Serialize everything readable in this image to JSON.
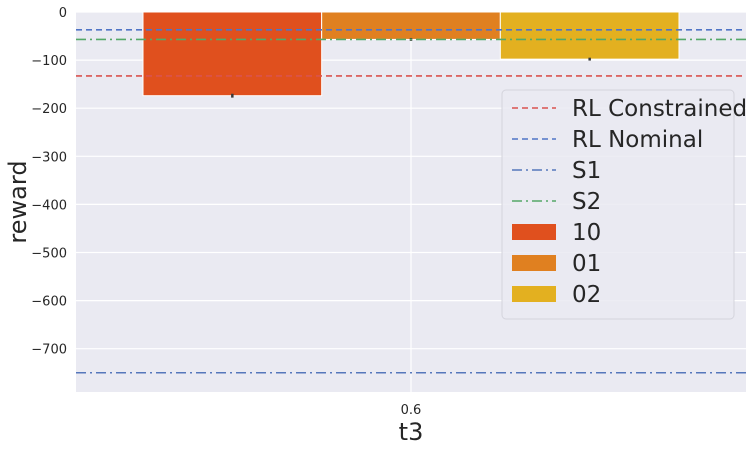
{
  "chart_data": {
    "type": "bar",
    "title": "",
    "xlabel": "t3",
    "ylabel": "reward",
    "categories": [
      "0.6"
    ],
    "ylim": [
      -790,
      0
    ],
    "yticks": [
      0,
      -100,
      -200,
      -300,
      -400,
      -500,
      -600,
      -700
    ],
    "ytick_labels": [
      "0",
      "−100",
      "−200",
      "−300",
      "−400",
      "−500",
      "−600",
      "−700"
    ],
    "grid": true,
    "legend_position": "right",
    "series": [
      {
        "name": "10",
        "values": [
          -174
        ],
        "error": [
          4
        ],
        "color": "#e0501e"
      },
      {
        "name": "01",
        "values": [
          -57
        ],
        "error": [
          3
        ],
        "color": "#e08020"
      },
      {
        "name": "02",
        "values": [
          -98
        ],
        "error": [
          3
        ],
        "color": "#e3b020"
      }
    ],
    "reference_lines": [
      {
        "name": "RL Constrained",
        "value": -133,
        "color": "#d9534f",
        "style": "dashed"
      },
      {
        "name": "RL Nominal",
        "value": -37,
        "color": "#4f74c6",
        "style": "dashed"
      },
      {
        "name": "S1",
        "value": -750,
        "color": "#5577bb",
        "style": "dashdot"
      },
      {
        "name": "S2",
        "value": -57,
        "color": "#55a868",
        "style": "dashdot"
      }
    ]
  }
}
